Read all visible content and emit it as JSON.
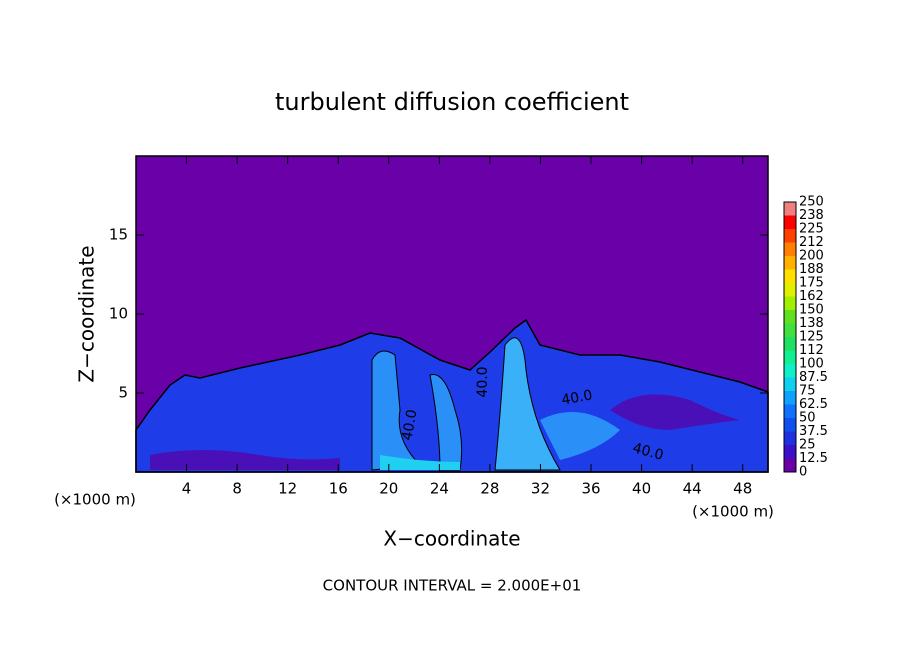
{
  "chart_data": {
    "type": "heatmap",
    "title": "turbulent diffusion coefficient",
    "x_label": "X−coordinate",
    "y_label": "Z−coordinate",
    "x_unit": "(×1000 m)",
    "y_unit": "(×1000 m)",
    "xlim": [
      0,
      50
    ],
    "xticks": [
      4,
      8,
      12,
      16,
      20,
      24,
      28,
      32,
      36,
      40,
      44,
      48
    ],
    "ylim": [
      0,
      20
    ],
    "yticks": [
      5,
      10,
      15
    ],
    "colorbar": {
      "ticks": [
        0,
        12.5,
        25,
        37.5,
        50,
        62.5,
        75,
        87.5,
        100,
        112,
        125,
        138,
        150,
        162,
        175,
        188,
        200,
        212,
        225,
        238,
        250
      ],
      "colors": [
        "#6a00a8",
        "#3a10c8",
        "#2030e0",
        "#1050f0",
        "#1070ff",
        "#10a0ff",
        "#10d0f0",
        "#10f0c8",
        "#10f090",
        "#20e060",
        "#40e040",
        "#60e020",
        "#a0f000",
        "#e0f000",
        "#ffe000",
        "#ffb000",
        "#ff8000",
        "#ff4000",
        "#ff0000",
        "#f08080"
      ]
    },
    "contour_labels": [
      "40.0",
      "40.0",
      "40.0",
      "40.0"
    ],
    "footnote": "CONTOUR INTERVAL = 2.000E+01"
  }
}
